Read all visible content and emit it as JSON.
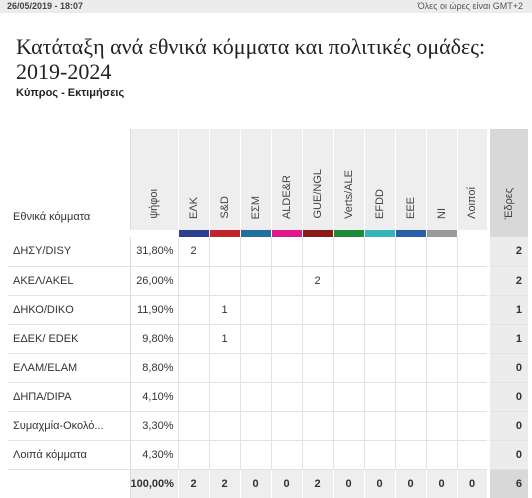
{
  "header": {
    "datetime": "26/05/2019 - 18:07",
    "timezone_note": "Όλες οι ώρες είναι GMT+2"
  },
  "title": "Κατάταξη ανά εθνικά κόμματα και πολιτικές ομάδες: 2019-2024",
  "subtitle": "Κύπρος - Εκτιμήσεις",
  "table": {
    "party_column_label": "Εθνικά κόμματα",
    "votes_column_label": "ψήφοι",
    "seats_column_label": "Έδρες",
    "groups": [
      {
        "label": "ΕΛΚ",
        "color": "#2c3e8c"
      },
      {
        "label": "S&D",
        "color": "#c0232c"
      },
      {
        "label": "ΕΣΜ",
        "color": "#1f6fa1"
      },
      {
        "label": "ALDE&R",
        "color": "#e0188a"
      },
      {
        "label": "GUE/NGL",
        "color": "#8b1a1a"
      },
      {
        "label": "Verts/ALE",
        "color": "#1e8a3a"
      },
      {
        "label": "EFDD",
        "color": "#35b5b5"
      },
      {
        "label": "EEE",
        "color": "#2a5fa8"
      },
      {
        "label": "NI",
        "color": "#9a9a9a"
      },
      {
        "label": "Λοιποί",
        "color": "#ffffff"
      }
    ],
    "rows": [
      {
        "party": "ΔΗΣΥ/DISY",
        "votes": "31,80%",
        "cells": [
          "2",
          "",
          "",
          "",
          "",
          "",
          "",
          "",
          "",
          ""
        ],
        "seats": "2"
      },
      {
        "party": "ΑΚΕΛ/AKEL",
        "votes": "26,00%",
        "cells": [
          "",
          "",
          "",
          "",
          "2",
          "",
          "",
          "",
          "",
          ""
        ],
        "seats": "2"
      },
      {
        "party": "ΔΗΚΟ/DIKO",
        "votes": "11,90%",
        "cells": [
          "",
          "1",
          "",
          "",
          "",
          "",
          "",
          "",
          "",
          ""
        ],
        "seats": "1"
      },
      {
        "party": "ΕΔΕΚ/ EDEK",
        "votes": "9,80%",
        "cells": [
          "",
          "1",
          "",
          "",
          "",
          "",
          "",
          "",
          "",
          ""
        ],
        "seats": "1"
      },
      {
        "party": "ΕΛΑΜ/ELAM",
        "votes": "8,80%",
        "cells": [
          "",
          "",
          "",
          "",
          "",
          "",
          "",
          "",
          "",
          ""
        ],
        "seats": "0"
      },
      {
        "party": "ΔΗΠΑ/DIPA",
        "votes": "4,10%",
        "cells": [
          "",
          "",
          "",
          "",
          "",
          "",
          "",
          "",
          "",
          ""
        ],
        "seats": "0"
      },
      {
        "party": "Συμαχμία-Οκολό...",
        "votes": "3,30%",
        "cells": [
          "",
          "",
          "",
          "",
          "",
          "",
          "",
          "",
          "",
          ""
        ],
        "seats": "0"
      },
      {
        "party": "Λοιπά κόμματα",
        "votes": "4,30%",
        "cells": [
          "",
          "",
          "",
          "",
          "",
          "",
          "",
          "",
          "",
          ""
        ],
        "seats": "0"
      }
    ],
    "totals": {
      "votes": "100,00%",
      "cells": [
        "2",
        "2",
        "0",
        "0",
        "2",
        "0",
        "0",
        "0",
        "0",
        "0"
      ],
      "seats": "6"
    }
  }
}
